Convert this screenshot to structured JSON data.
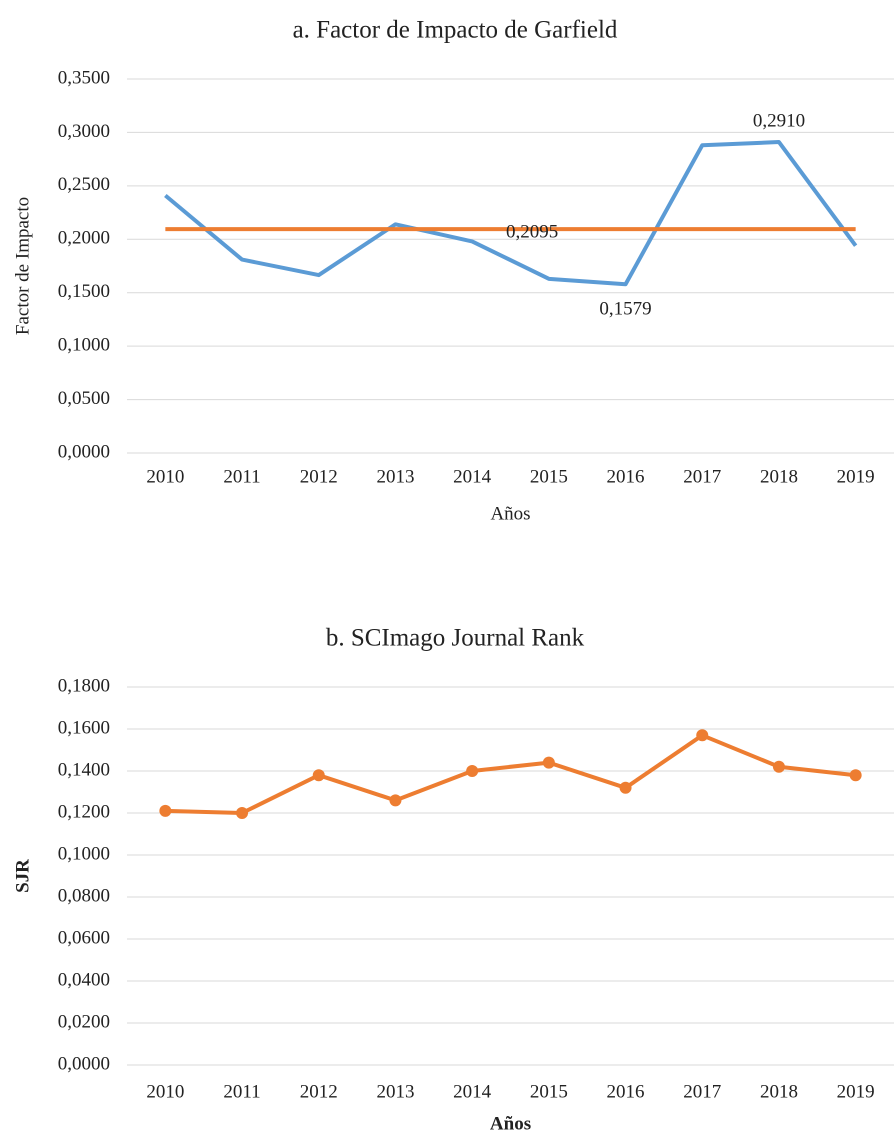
{
  "chart_data": [
    {
      "type": "line",
      "title": "a. Factor de Impacto de Garfield",
      "x_label": "Años",
      "y_label": "Factor de Impacto",
      "y_label_bold": false,
      "x_label_bold": false,
      "markers": false,
      "categories": [
        "2010",
        "2011",
        "2012",
        "2013",
        "2014",
        "2015",
        "2016",
        "2017",
        "2018",
        "2019"
      ],
      "series": [
        {
          "color": "#5b9bd5",
          "values": [
            0.241,
            0.181,
            0.1665,
            0.214,
            0.198,
            0.163,
            0.1579,
            0.288,
            0.291,
            0.194
          ],
          "value_labels": [
            null,
            null,
            null,
            null,
            null,
            null,
            "0,1579",
            null,
            "0,2910",
            null
          ]
        },
        {
          "color": "#ed7d31",
          "values": [
            0.2095,
            0.2095,
            0.2095,
            0.2095,
            0.2095,
            0.2095,
            0.2095,
            0.2095,
            0.2095,
            0.2095
          ],
          "value_labels": [
            null,
            null,
            null,
            null,
            "0,2095",
            null,
            null,
            null,
            null,
            null
          ]
        }
      ],
      "ylim": [
        0,
        0.35
      ],
      "yticks": [
        {
          "value": 0,
          "label": "0,0000"
        },
        {
          "value": 0.05,
          "label": "0,0500"
        },
        {
          "value": 0.1,
          "label": "0,1000"
        },
        {
          "value": 0.15,
          "label": "0,1500"
        },
        {
          "value": 0.2,
          "label": "0,2000"
        },
        {
          "value": 0.25,
          "label": "0,2500"
        },
        {
          "value": 0.3,
          "label": "0,3000"
        },
        {
          "value": 0.35,
          "label": "0,3500"
        }
      ],
      "grid": true
    },
    {
      "type": "line",
      "title": "b. SCImago Journal Rank",
      "x_label": "Años",
      "y_label": "SJR",
      "y_label_bold": true,
      "x_label_bold": true,
      "markers": true,
      "categories": [
        "2010",
        "2011",
        "2012",
        "2013",
        "2014",
        "2015",
        "2016",
        "2017",
        "2018",
        "2019"
      ],
      "series": [
        {
          "color": "#ed7d31",
          "values": [
            0.121,
            0.12,
            0.138,
            0.126,
            0.14,
            0.144,
            0.132,
            0.157,
            0.142,
            0.138
          ]
        }
      ],
      "ylim": [
        0,
        0.18
      ],
      "yticks": [
        {
          "value": 0,
          "label": "0,0000"
        },
        {
          "value": 0.02,
          "label": "0,0200"
        },
        {
          "value": 0.04,
          "label": "0,0400"
        },
        {
          "value": 0.06,
          "label": "0,0600"
        },
        {
          "value": 0.08,
          "label": "0,0800"
        },
        {
          "value": 0.1,
          "label": "0,1000"
        },
        {
          "value": 0.12,
          "label": "0,1200"
        },
        {
          "value": 0.14,
          "label": "0,1400"
        },
        {
          "value": 0.16,
          "label": "0,1600"
        },
        {
          "value": 0.18,
          "label": "0,1800"
        }
      ],
      "grid": true
    }
  ]
}
